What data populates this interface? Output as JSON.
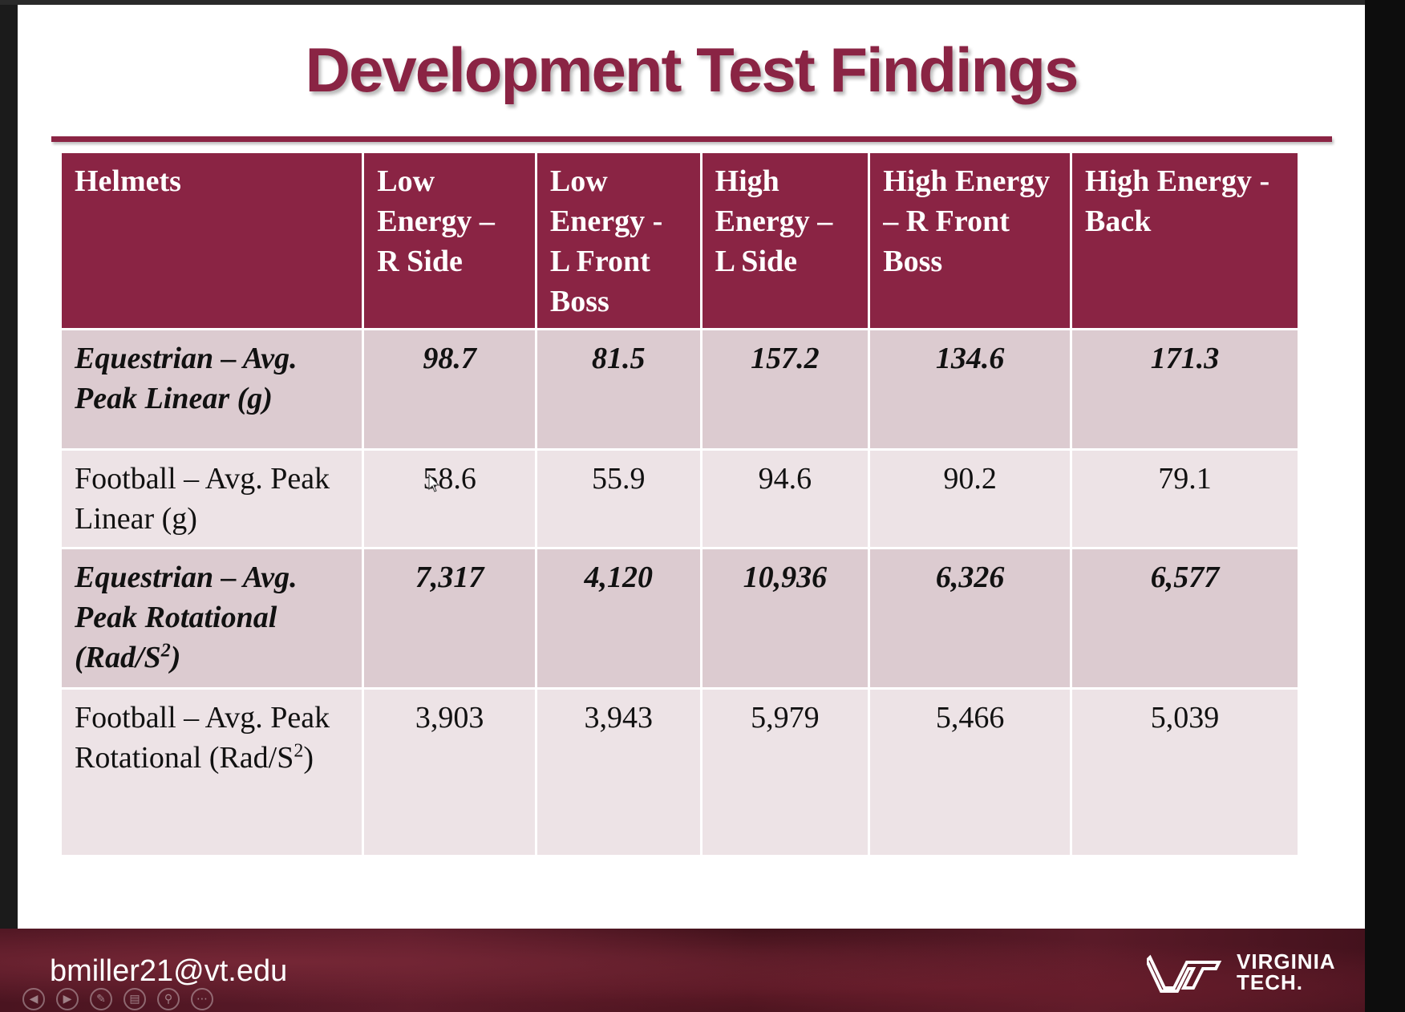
{
  "slide": {
    "title": "Development Test Findings",
    "table": {
      "headers": [
        "Helmets",
        "Low Energy – R Side",
        "Low Energy - L Front Boss",
        "High Energy – L Side",
        "High Energy – R Front Boss",
        "High Energy - Back"
      ],
      "rows": [
        {
          "label": "Equestrian – Avg. Peak Linear (g)",
          "values": [
            "98.7",
            "81.5",
            "157.2",
            "134.6",
            "171.3"
          ]
        },
        {
          "label": "Football – Avg. Peak Linear (g)",
          "values": [
            "58.6",
            "55.9",
            "94.6",
            "90.2",
            "79.1"
          ]
        },
        {
          "label_main": "Equestrian – Avg. Peak Rotational (Rad/S",
          "label_sup": "2",
          "label_end": ")",
          "values": [
            "7,317",
            "4,120",
            "10,936",
            "6,326",
            "6,577"
          ]
        },
        {
          "label_main": "Football – Avg. Peak Rotational (Rad/S",
          "label_sup": "2",
          "label_end": ")",
          "values": [
            "3,903",
            "3,943",
            "5,979",
            "5,466",
            "5,039"
          ]
        }
      ]
    }
  },
  "footer": {
    "email": "bmiller21@vt.edu",
    "logo_text_line1": "VIRGINIA",
    "logo_text_line2": "TECH."
  },
  "nav_icons": [
    "previous-icon",
    "next-icon",
    "pen-icon",
    "slides-icon",
    "zoom-icon",
    "more-icon"
  ],
  "colors": {
    "maroon": "#8a2444",
    "highlight_red": "#e8192c"
  }
}
